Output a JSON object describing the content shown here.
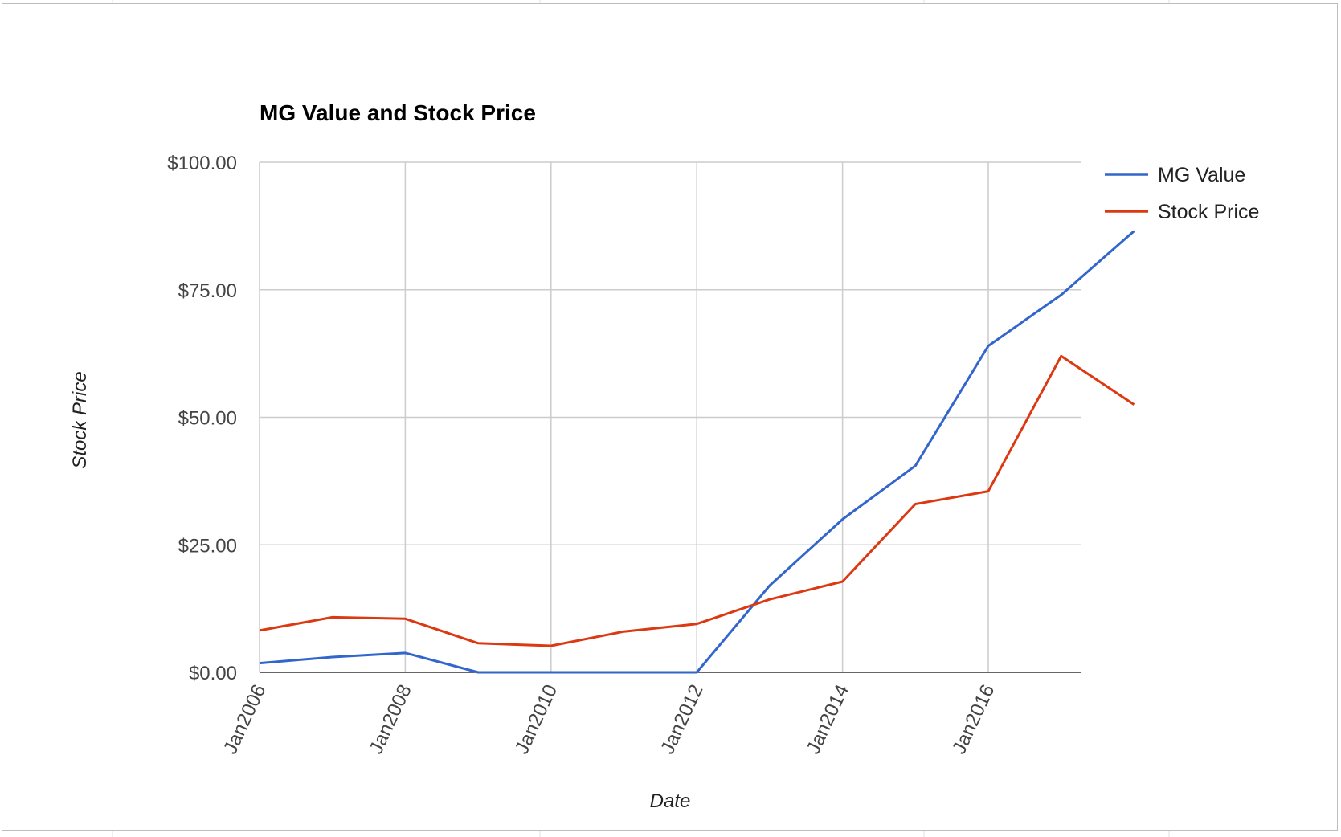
{
  "chart_data": {
    "type": "line",
    "title": "MG Value and Stock Price",
    "xlabel": "Date",
    "ylabel": "Stock Price",
    "x": [
      "Jan2006",
      "Jan2007",
      "Jan2008",
      "Jan2009",
      "Jan2010",
      "Jan2011",
      "Jan2012",
      "Jan2013",
      "Jan2014",
      "Jan2015",
      "Jan2016",
      "Jan2017",
      "Jul2017"
    ],
    "x_ticks": [
      "Jan2006",
      "Jan2008",
      "Jan2010",
      "Jan2012",
      "Jan2014",
      "Jan2016"
    ],
    "y_ticks": [
      "$0.00",
      "$25.00",
      "$50.00",
      "$75.00",
      "$100.00"
    ],
    "ylim": [
      0,
      100
    ],
    "grid": true,
    "legend": "right",
    "series": [
      {
        "name": "MG Value",
        "color": "#3366cc",
        "values": [
          1.8,
          3.0,
          3.8,
          0,
          0,
          0,
          0,
          17,
          30,
          40.5,
          64,
          74,
          86.5
        ]
      },
      {
        "name": "Stock Price",
        "color": "#dc3912",
        "values": [
          8.2,
          10.8,
          10.5,
          5.7,
          5.2,
          8.0,
          9.5,
          14.3,
          17.8,
          33.0,
          35.5,
          62,
          52.5
        ]
      }
    ]
  }
}
